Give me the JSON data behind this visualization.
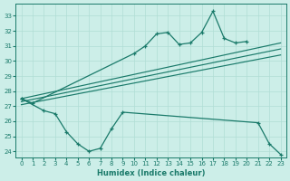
{
  "xlabel": "Humidex (Indice chaleur)",
  "line_top_x": [
    0,
    1,
    10,
    11,
    12,
    13,
    14,
    15,
    16,
    17,
    18,
    19,
    20
  ],
  "line_top_y": [
    27.5,
    27.2,
    30.5,
    31.0,
    31.8,
    31.9,
    31.1,
    31.2,
    31.9,
    33.3,
    31.5,
    31.2,
    31.3
  ],
  "line_bot_x": [
    0,
    2,
    3,
    4,
    5,
    6,
    7,
    8,
    9,
    21,
    22,
    23
  ],
  "line_bot_y": [
    27.5,
    26.7,
    26.5,
    25.3,
    24.5,
    24.0,
    24.2,
    25.5,
    26.6,
    25.9,
    24.5,
    23.8
  ],
  "reg_lines": [
    {
      "x": [
        0,
        23
      ],
      "y": [
        27.5,
        31.2
      ]
    },
    {
      "x": [
        0,
        23
      ],
      "y": [
        27.3,
        30.8
      ]
    },
    {
      "x": [
        0,
        23
      ],
      "y": [
        27.1,
        30.4
      ]
    }
  ],
  "ylim": [
    23.6,
    33.8
  ],
  "xlim": [
    -0.5,
    23.5
  ],
  "yticks": [
    24,
    25,
    26,
    27,
    28,
    29,
    30,
    31,
    32,
    33
  ],
  "xticks": [
    0,
    1,
    2,
    3,
    4,
    5,
    6,
    7,
    8,
    9,
    10,
    11,
    12,
    13,
    14,
    15,
    16,
    17,
    18,
    19,
    20,
    21,
    22,
    23
  ],
  "line_color": "#1a7a6a",
  "bg_color": "#cceee8",
  "grid_color": "#b0ddd5"
}
